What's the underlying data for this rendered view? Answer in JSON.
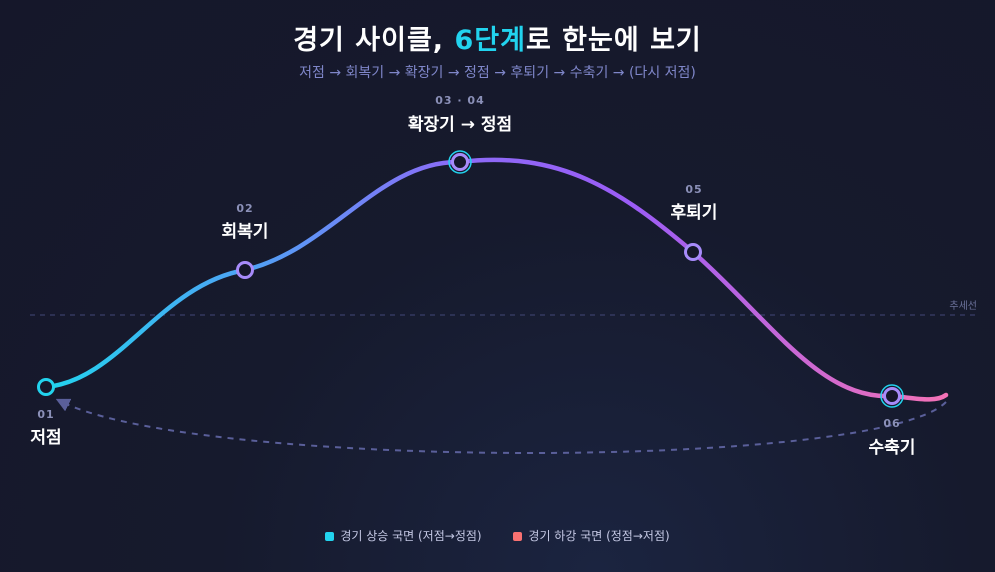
{
  "header": {
    "title_pre": "경기 사이클, ",
    "title_highlight": "6단계",
    "title_post": "로 한눈에 보기",
    "subtitle": "저점 → 회복기 → 확장기 → 정점 → 후퇴기 → 수축기 → (다시 저점)"
  },
  "trend_label": "추세선",
  "stages": [
    {
      "num": "01",
      "name": "저점"
    },
    {
      "num": "02",
      "name": "회복기"
    },
    {
      "num": "03 · 04",
      "name": "확장기 → 정점"
    },
    {
      "num": "05",
      "name": "후퇴기"
    },
    {
      "num": "06",
      "name": "수축기"
    }
  ],
  "legend": [
    {
      "label": "경기 상승 국면 (저점→정점)",
      "color": "#22d3ee"
    },
    {
      "label": "경기 하강 국면 (정점→저점)",
      "color": "#f87171"
    }
  ],
  "colors": {
    "rise_start": "#22d3ee",
    "rise_mid": "#6b7cf5",
    "peak": "#9b5cf6",
    "fall_end": "#f472b6",
    "node_stroke": "#a78bfa",
    "cycle_arrow": "#5a5f9a"
  }
}
